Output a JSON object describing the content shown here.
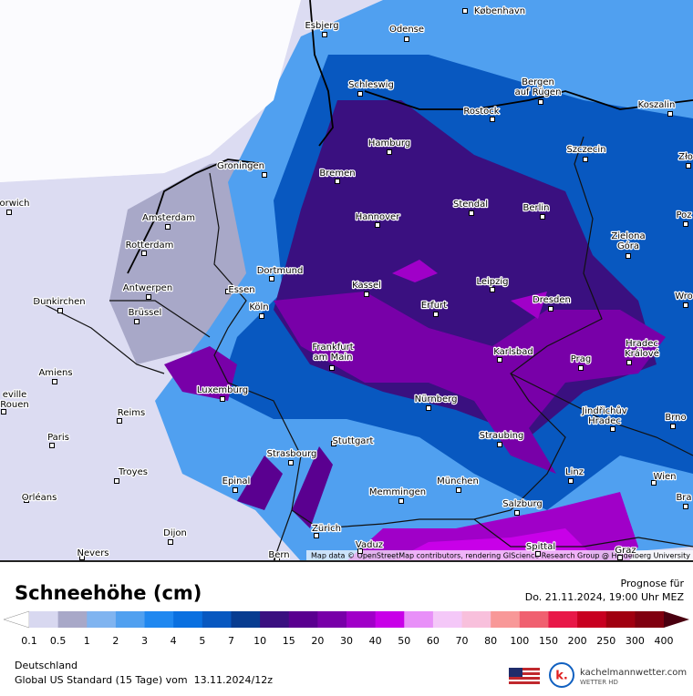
{
  "map": {
    "cities": [
      [
        "Esbjerg"
      ],
      [
        "Odense"
      ],
      [
        "København"
      ],
      [
        "Schleswig"
      ],
      [
        "Bergen",
        "auf Rügen"
      ],
      [
        "Rostock"
      ],
      [
        "Koszalin"
      ],
      [
        "Hamburg"
      ],
      [
        "Szczecin"
      ],
      [
        "Groningen"
      ],
      [
        "Bremen"
      ],
      [
        "Zło"
      ],
      [
        "Stendal"
      ],
      [
        "orwich"
      ],
      [
        "Amsterdam"
      ],
      [
        "Hannover"
      ],
      [
        "Berlin"
      ],
      [
        "Poz"
      ],
      [
        "Rotterdam"
      ],
      [
        "Zielona",
        "Góra"
      ],
      [
        "Dortmund"
      ],
      [
        "Leipzig"
      ],
      [
        "Essen"
      ],
      [
        "Kassel"
      ],
      [
        "Antwerpen"
      ],
      [
        "Dunkirchen"
      ],
      [
        "Köln"
      ],
      [
        "Erfurt"
      ],
      [
        "Dresden"
      ],
      [
        "Wro"
      ],
      [
        "Brüssel"
      ],
      [
        "Frankfurt",
        "am Main"
      ],
      [
        "Karlsbad"
      ],
      [
        "Hradec",
        "Králové"
      ],
      [
        "Amiens"
      ],
      [
        "Prag"
      ],
      [
        "Luxemburg"
      ],
      [
        "eville",
        "Rouen"
      ],
      [
        "Reims"
      ],
      [
        "Nürnberg"
      ],
      [
        "Jindřichův",
        "Hradec"
      ],
      [
        "Brno"
      ],
      [
        "Paris"
      ],
      [
        "Straubing"
      ],
      [
        "Stuttgart"
      ],
      [
        "Strasbourg"
      ],
      [
        "Troyes"
      ],
      [
        "Epinal"
      ],
      [
        "München"
      ],
      [
        "Linz"
      ],
      [
        "Wien"
      ],
      [
        "Bra"
      ],
      [
        "Orléans"
      ],
      [
        "Memmingen"
      ],
      [
        "Salzburg"
      ],
      [
        "Zürich"
      ],
      [
        "Dijon"
      ],
      [
        "Vaduz"
      ],
      [
        "Nevers"
      ],
      [
        "Bern"
      ],
      [
        "Spittal"
      ],
      [
        "Graz"
      ]
    ],
    "attribution": "Map data © OpenStreetMap contributors, rendering GIScience Research Group @ Heidelberg University"
  },
  "legend": {
    "title": "Schneehöhe (cm)",
    "ticks": [
      0.1,
      0.5,
      1,
      2,
      3,
      4,
      5,
      7,
      10,
      15,
      20,
      30,
      40,
      50,
      60,
      70,
      80,
      100,
      150,
      200,
      250,
      300,
      400
    ],
    "colors": [
      "#d8d8f0",
      "#a8a8c8",
      "#80b4f0",
      "#50a0f0",
      "#2088f0",
      "#0a70e0",
      "#0858c0",
      "#083c90",
      "#3a1080",
      "#5a0090",
      "#7800a8",
      "#a000c8",
      "#c800e8",
      "#e890f8",
      "#f4c8f8",
      "#f8c0dc",
      "#f89898",
      "#f06070",
      "#e81848",
      "#c80020",
      "#a00010",
      "#800010"
    ]
  },
  "forecast": {
    "label": "Prognose für",
    "time": "Do. 21.11.2024, 19:00 Uhr MEZ"
  },
  "footer": {
    "region": "Deutschland",
    "model": "Global US Standard (15 Tage) vom  13.11.2024/12z",
    "brand": "kachelmannwetter.com",
    "brand_sub": "WETTER HD"
  }
}
